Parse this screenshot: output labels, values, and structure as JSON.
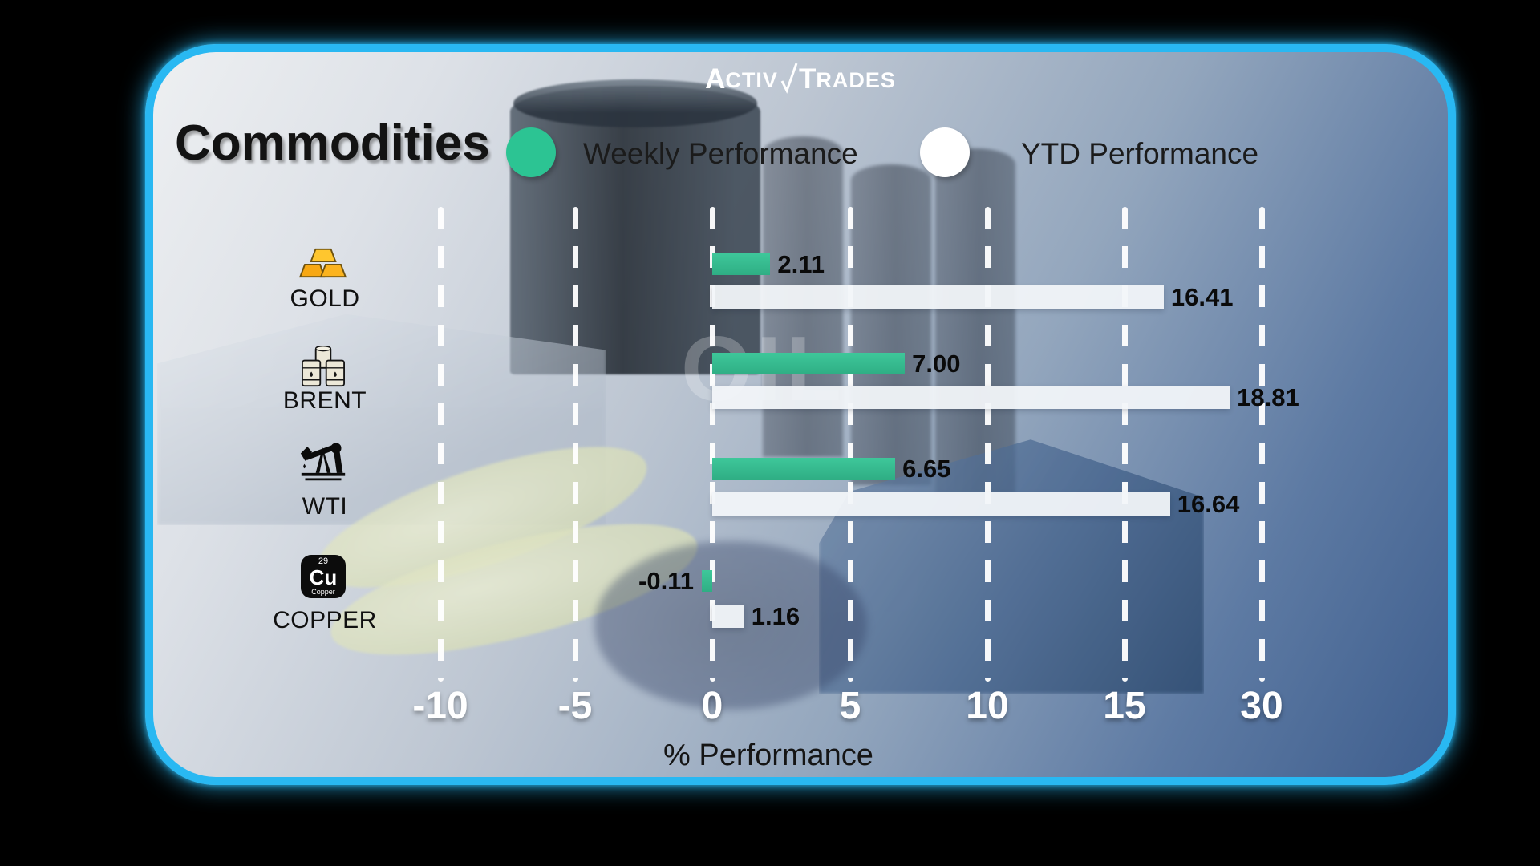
{
  "brand": {
    "logo": {
      "a": "A",
      "ctiv": "CTIV",
      "t": "T",
      "rades": "RADES"
    }
  },
  "header": {
    "title": "Commodities"
  },
  "legend": {
    "weekly": {
      "label": "Weekly Performance",
      "color": "#2cc493"
    },
    "ytd": {
      "label": "YTD Performance",
      "color": "#ffffff"
    }
  },
  "watermark": "OIL",
  "axis": {
    "ticks": [
      "-10",
      "-5",
      "0",
      "5",
      "10",
      "15",
      "30"
    ],
    "label": "% Performance"
  },
  "rows": [
    {
      "label": "GOLD",
      "icon": "gold-bars-icon",
      "weekly_value": 2.11,
      "weekly_text": "2.11",
      "ytd_value": 16.41,
      "ytd_text": "16.41"
    },
    {
      "label": "BRENT",
      "icon": "oil-barrels-icon",
      "weekly_value": 7.0,
      "weekly_text": "7.00",
      "ytd_value": 18.81,
      "ytd_text": "18.81"
    },
    {
      "label": "WTI",
      "icon": "pump-jack-icon",
      "weekly_value": 6.65,
      "weekly_text": "6.65",
      "ytd_value": 16.64,
      "ytd_text": "16.64"
    },
    {
      "label": "COPPER",
      "icon": "copper-element-icon",
      "weekly_value": -0.11,
      "weekly_text": "-0.11",
      "ytd_value": 1.16,
      "ytd_text": "1.16"
    }
  ],
  "copper_tile": {
    "number": "29",
    "symbol": "Cu",
    "name": "Copper"
  },
  "chart_data": {
    "type": "bar",
    "orientation": "horizontal",
    "title": "Commodities",
    "categories": [
      "GOLD",
      "BRENT",
      "WTI",
      "COPPER"
    ],
    "series": [
      {
        "name": "Weekly Performance",
        "color": "#35bd90",
        "values": [
          2.11,
          7.0,
          6.65,
          -0.11
        ]
      },
      {
        "name": "YTD Performance",
        "color": "#f2f5f9",
        "values": [
          16.41,
          18.81,
          16.64,
          1.16
        ]
      }
    ],
    "xlabel": "% Performance",
    "x_tick_labels": [
      "-10",
      "-5",
      "0",
      "5",
      "10",
      "15",
      "30"
    ],
    "xlim": [
      -12.5,
      22.5
    ],
    "grid": "vertical-dashed-white",
    "legend_position": "top",
    "value_labels_shown": true
  }
}
